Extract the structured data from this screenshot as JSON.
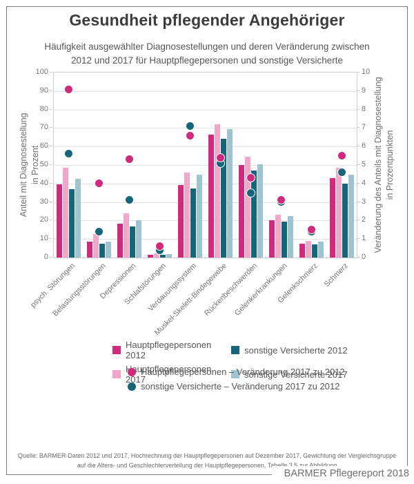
{
  "chart_data": {
    "type": "bar",
    "title": "Gesundheit pflegender Angehöriger",
    "subtitle_line1": "Häufigkeit ausgewählter Diagnosestellungen und deren Veränderung zwischen",
    "subtitle_line2": "2012 und 2017 für Hauptpflegepersonen und sonstige Versicherte",
    "grid": "horizontal",
    "legend_position": "bottom",
    "categories": [
      "psych. Störungen",
      "Belastungsstörungen",
      "Depressionen",
      "Schlafstörungen",
      "Verdauungssystem",
      "Muskel-Skelett-Bindegewebe",
      "Rückenbeschwerden",
      "Gelenkerkrankungen",
      "Gelenkschmerz",
      "Schmerz"
    ],
    "series": [
      {
        "name": "Hauptpflegepersonen 2012",
        "color": "#ce2b7c",
        "values": [
          39.5,
          8.7,
          18.4,
          1.5,
          39.3,
          66.5,
          50.1,
          20.1,
          7.6,
          43.0
        ]
      },
      {
        "name": "Hauptpflegepersonen 2017",
        "color": "#f2a7c9",
        "values": [
          48.6,
          12.7,
          23.7,
          2.1,
          45.9,
          71.9,
          54.4,
          23.2,
          9.1,
          48.5
        ]
      },
      {
        "name": "sonstige Versicherte 2012",
        "color": "#156679",
        "values": [
          36.8,
          7.3,
          16.9,
          1.4,
          37.5,
          64.2,
          46.9,
          19.4,
          7.1,
          40.1
        ]
      },
      {
        "name": "sonstige Versicherte 2017",
        "color": "#9ec3d1",
        "values": [
          42.4,
          8.7,
          20.0,
          1.8,
          44.6,
          69.3,
          50.4,
          22.4,
          8.5,
          44.7
        ]
      }
    ],
    "dot_series": [
      {
        "name": "Hauptpflegepersonen – Veränderung 2017 zu 2012",
        "color": "#ce2b7c",
        "values": [
          9.1,
          4.0,
          5.3,
          0.6,
          6.6,
          5.4,
          4.3,
          3.1,
          1.5,
          5.5
        ]
      },
      {
        "name": "sonstige Versicherte – Veränderung 2017 zu 2012",
        "color": "#156679",
        "values": [
          5.6,
          1.4,
          3.1,
          0.4,
          7.1,
          5.1,
          3.5,
          3.0,
          1.4,
          4.6
        ]
      }
    ],
    "left_axis": {
      "label_line1": "Anteil mit Diagnosestellung",
      "label_line2": "in Prozent",
      "min": 0,
      "max": 100,
      "step": 10
    },
    "right_axis": {
      "label_line1": "Veränderung des Anteils mit Diagnosestellung",
      "label_line2": "in Prozentpunkten",
      "min": 0,
      "max": 10,
      "step": 1
    }
  },
  "source": {
    "line1": "Quelle: BARMER-Daten 2012 und 2017, Hochrechnung der Hauptpflegepersonen auf Dezember 2017, Gewichtung der Vergleichsgruppe",
    "line2": "auf die Alters- und Geschlechterverteilung der Hauptpflegepersonen, Tabelle 3.5 zur Abbildung"
  },
  "footer": {
    "text": "BARMER Pflegereport 2018"
  }
}
